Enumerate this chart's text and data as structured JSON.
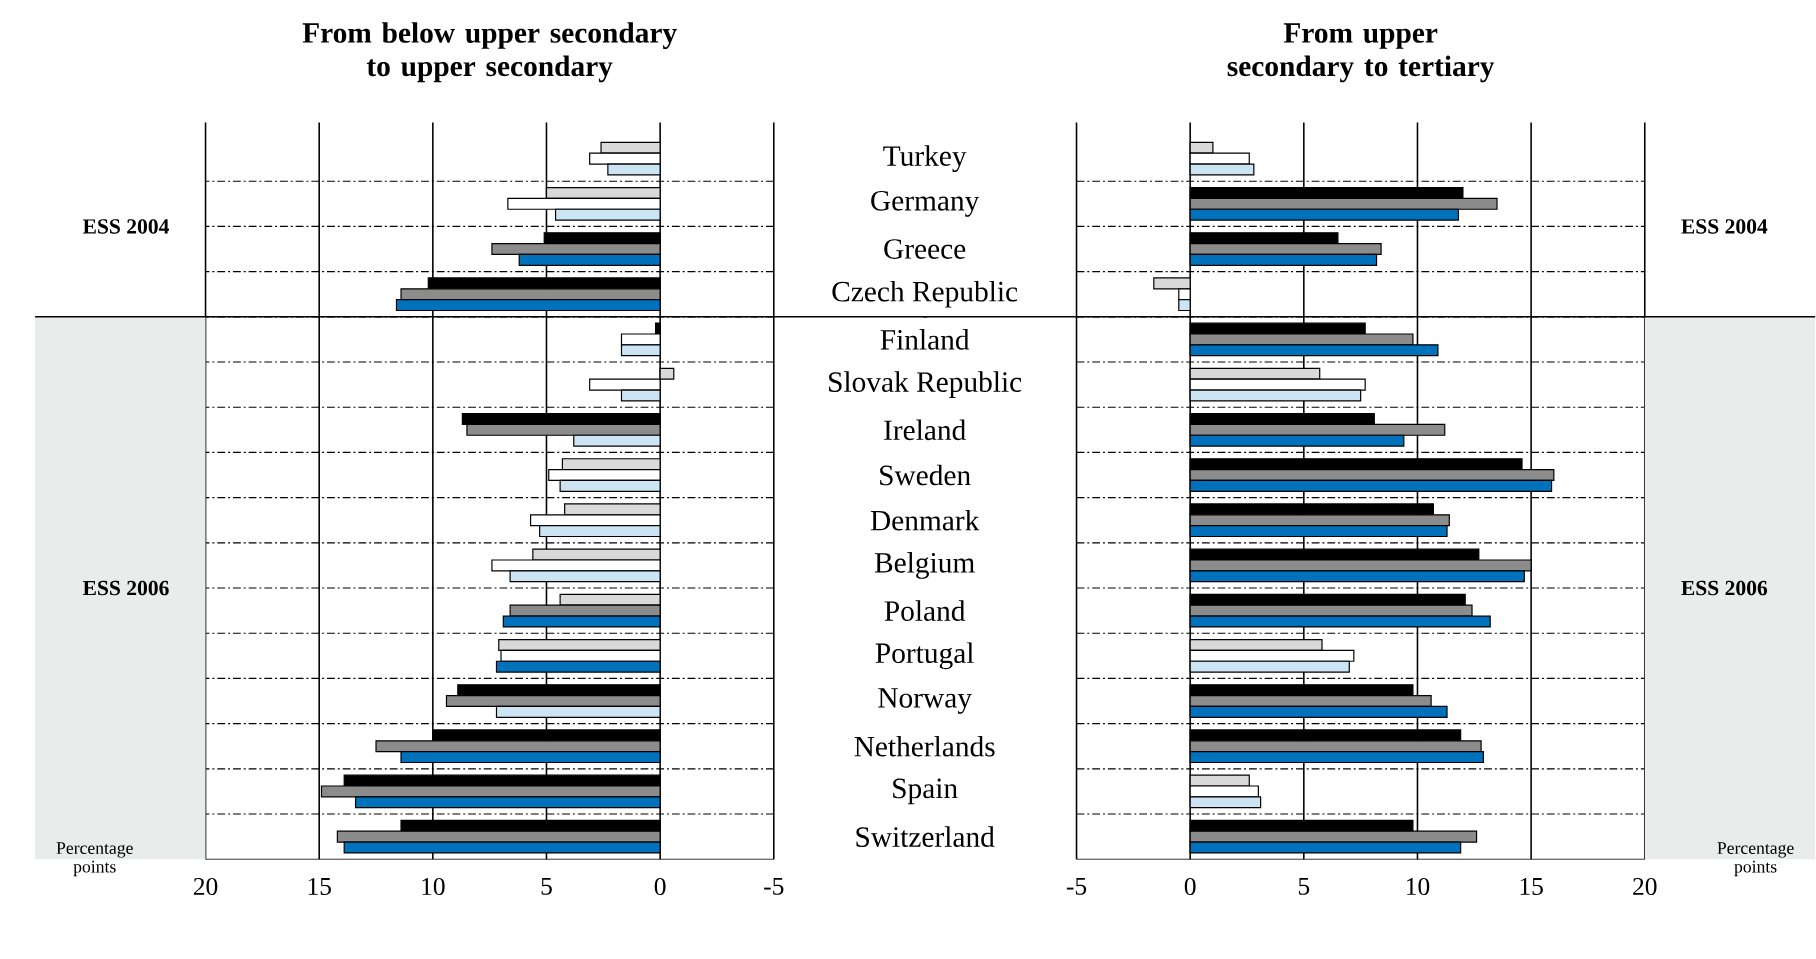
{
  "chart_data": [
    {
      "type": "bar",
      "orientation": "horizontal",
      "title": "From below upper secondary to upper secondary",
      "xlabel": "Percentage points",
      "categories": [
        "Turkey",
        "Germany",
        "Greece",
        "Czech Republic",
        "Finland",
        "Slovak Republic",
        "Ireland",
        "Sweden",
        "Denmark",
        "Belgium",
        "Poland",
        "Portugal",
        "Norway",
        "Netherlands",
        "Spain",
        "Switzerland"
      ],
      "series": [
        {
          "colors": [
            "#d9d9d9",
            "#d9d9d9",
            "#000000",
            "#000000",
            "#000000",
            "#d9d9d9",
            "#000000",
            "#d9d9d9",
            "#d9d9d9",
            "#d9d9d9",
            "#d9d9d9",
            "#d9d9d9",
            "#000000",
            "#000000",
            "#000000",
            "#000000"
          ],
          "values": [
            2.6,
            5.0,
            5.1,
            10.2,
            0.2,
            -0.6,
            8.7,
            4.3,
            4.2,
            5.6,
            4.4,
            7.1,
            8.9,
            10.0,
            13.9,
            11.4
          ]
        },
        {
          "colors": [
            "#ffffff",
            "#ffffff",
            "#8c8c8c",
            "#8c8c8c",
            "#ffffff",
            "#ffffff",
            "#8c8c8c",
            "#ffffff",
            "#ffffff",
            "#ffffff",
            "#8c8c8c",
            "#ffffff",
            "#8c8c8c",
            "#8c8c8c",
            "#8c8c8c",
            "#8c8c8c"
          ],
          "values": [
            3.1,
            6.7,
            7.4,
            11.4,
            1.7,
            3.1,
            8.5,
            4.9,
            5.7,
            7.4,
            6.6,
            7.0,
            9.4,
            12.5,
            14.9,
            14.2
          ]
        },
        {
          "colors": [
            "#cce4f4",
            "#cce4f4",
            "#0072bc",
            "#0072bc",
            "#cce4f4",
            "#cce4f4",
            "#cce4f4",
            "#cce4f4",
            "#cce4f4",
            "#cce4f4",
            "#0072bc",
            "#0072bc",
            "#cce4f4",
            "#0072bc",
            "#0072bc",
            "#0072bc"
          ],
          "values": [
            2.3,
            4.6,
            6.2,
            11.6,
            1.7,
            1.7,
            3.8,
            4.4,
            5.3,
            6.6,
            6.9,
            7.2,
            7.2,
            11.4,
            13.4,
            13.9
          ]
        }
      ],
      "xlim": [
        20,
        -5
      ],
      "xticks": [
        20,
        15,
        10,
        5,
        0,
        -5
      ],
      "grid": true,
      "annotations": [
        "ESS 2004",
        "ESS 2006"
      ]
    },
    {
      "type": "bar",
      "orientation": "horizontal",
      "title": "From upper secondary to tertiary",
      "xlabel": "Percentage points",
      "categories": [
        null,
        null,
        null,
        null,
        null,
        null,
        null,
        null,
        null,
        null,
        null,
        null,
        null,
        null,
        null,
        null
      ],
      "series": [
        {
          "colors": [
            "#d9d9d9",
            "#000000",
            "#000000",
            "#d9d9d9",
            "#000000",
            "#d9d9d9",
            "#000000",
            "#000000",
            "#000000",
            "#000000",
            "#000000",
            "#d9d9d9",
            "#000000",
            "#000000",
            "#d9d9d9",
            "#000000"
          ],
          "values": [
            1.0,
            12.0,
            6.5,
            -1.6,
            7.7,
            5.7,
            8.1,
            14.6,
            10.7,
            12.7,
            12.1,
            5.8,
            9.8,
            11.9,
            2.6,
            9.8
          ]
        },
        {
          "colors": [
            "#ffffff",
            "#8c8c8c",
            "#8c8c8c",
            "#ffffff",
            "#8c8c8c",
            "#ffffff",
            "#8c8c8c",
            "#8c8c8c",
            "#8c8c8c",
            "#8c8c8c",
            "#8c8c8c",
            "#ffffff",
            "#8c8c8c",
            "#8c8c8c",
            "#ffffff",
            "#8c8c8c"
          ],
          "values": [
            2.6,
            13.5,
            8.4,
            -0.5,
            9.8,
            7.7,
            11.2,
            16.0,
            11.4,
            15.0,
            12.4,
            7.2,
            10.6,
            12.8,
            3.0,
            12.6
          ]
        },
        {
          "colors": [
            "#cce4f4",
            "#0072bc",
            "#0072bc",
            "#cce4f4",
            "#0072bc",
            "#cce4f4",
            "#0072bc",
            "#0072bc",
            "#0072bc",
            "#0072bc",
            "#0072bc",
            "#cce4f4",
            "#0072bc",
            "#0072bc",
            "#cce4f4",
            "#0072bc"
          ],
          "values": [
            2.8,
            11.8,
            8.2,
            -0.5,
            10.9,
            7.5,
            9.4,
            15.9,
            11.3,
            14.7,
            13.2,
            7.0,
            11.3,
            12.9,
            3.1,
            11.9
          ]
        }
      ],
      "xlim": [
        -5,
        20
      ],
      "xticks": [
        -5,
        0,
        5,
        10,
        15,
        20
      ],
      "grid": true,
      "annotations": [
        "ESS 2004",
        "ESS 2006"
      ]
    }
  ]
}
